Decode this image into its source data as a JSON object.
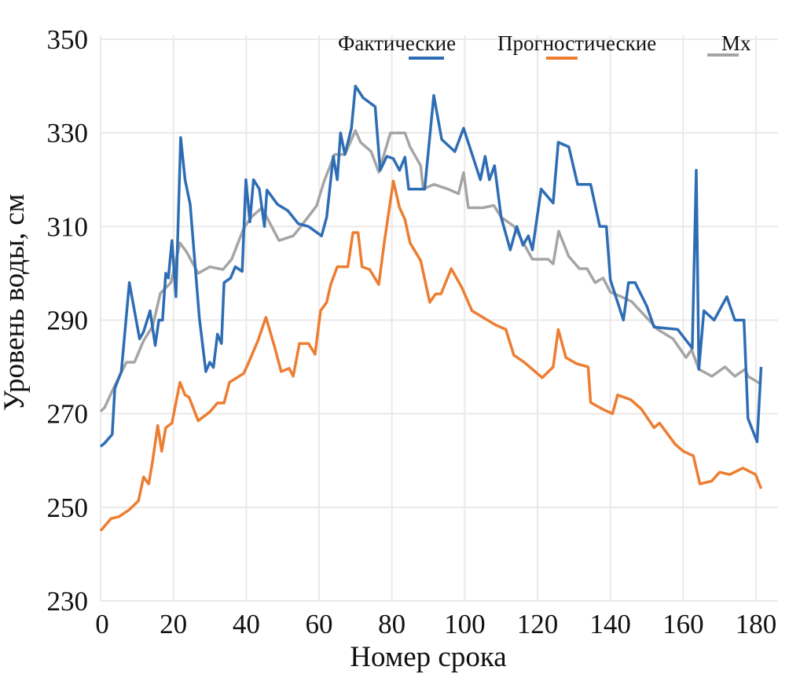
{
  "chart_data": {
    "type": "line",
    "title": "",
    "xlabel": "Номер срока",
    "ylabel": "Уровень воды, см",
    "xlim": [
      0,
      182
    ],
    "ylim": [
      230,
      350
    ],
    "xticks": [
      "0",
      "20",
      "40",
      "60",
      "80",
      "100",
      "120",
      "140",
      "160",
      "180"
    ],
    "yticks": [
      "230",
      "250",
      "270",
      "290",
      "310",
      "330",
      "350"
    ],
    "grid": true,
    "legend_position": "top-right",
    "series": [
      {
        "name": "Фактические",
        "color": "#2e6db4",
        "points": [
          [
            0,
            263
          ],
          [
            1.1,
            263.7
          ],
          [
            3.2,
            265.6
          ],
          [
            3.9,
            275.4
          ],
          [
            5.7,
            279
          ],
          [
            7.9,
            298
          ],
          [
            10.7,
            286
          ],
          [
            11.8,
            287.5
          ],
          [
            13.6,
            292
          ],
          [
            15,
            284.6
          ],
          [
            16,
            290
          ],
          [
            17,
            290
          ],
          [
            17.9,
            300
          ],
          [
            18.6,
            299
          ],
          [
            19.6,
            307
          ],
          [
            20.7,
            295
          ],
          [
            22,
            329
          ],
          [
            23.2,
            320
          ],
          [
            24.6,
            314.7
          ],
          [
            27.1,
            290.6
          ],
          [
            28.9,
            279
          ],
          [
            30,
            281
          ],
          [
            31,
            279.9
          ],
          [
            32.1,
            287
          ],
          [
            33.2,
            285
          ],
          [
            33.9,
            298
          ],
          [
            35.7,
            299
          ],
          [
            37,
            301.4
          ],
          [
            38.9,
            300.4
          ],
          [
            39.9,
            320
          ],
          [
            41,
            311
          ],
          [
            42,
            320
          ],
          [
            43.6,
            318
          ],
          [
            45,
            310
          ],
          [
            45.7,
            317.8
          ],
          [
            48.6,
            314.7
          ],
          [
            51.4,
            313.4
          ],
          [
            54.3,
            310.6
          ],
          [
            57.1,
            310
          ],
          [
            60.7,
            308
          ],
          [
            62.1,
            312
          ],
          [
            63.9,
            325
          ],
          [
            65,
            320
          ],
          [
            65.9,
            330
          ],
          [
            67.1,
            325.4
          ],
          [
            68.9,
            331
          ],
          [
            70,
            340
          ],
          [
            72.1,
            337.5
          ],
          [
            75.4,
            335.6
          ],
          [
            76.8,
            322
          ],
          [
            78.6,
            325
          ],
          [
            80.4,
            324.5
          ],
          [
            82.1,
            322
          ],
          [
            83.6,
            324.8
          ],
          [
            84.6,
            318
          ],
          [
            89,
            318
          ],
          [
            91.5,
            338
          ],
          [
            93.7,
            328.6
          ],
          [
            97.3,
            326
          ],
          [
            99.7,
            331
          ],
          [
            104.3,
            320
          ],
          [
            105.6,
            325
          ],
          [
            106.8,
            320
          ],
          [
            108.2,
            323
          ],
          [
            110,
            312
          ],
          [
            112.5,
            305
          ],
          [
            114.3,
            310
          ],
          [
            116,
            306
          ],
          [
            117.5,
            308
          ],
          [
            118.6,
            305
          ],
          [
            121,
            318
          ],
          [
            124.3,
            315
          ],
          [
            125.7,
            328
          ],
          [
            128.6,
            327
          ],
          [
            131,
            319
          ],
          [
            134.6,
            319
          ],
          [
            137.1,
            310
          ],
          [
            138.9,
            310
          ],
          [
            140,
            298.6
          ],
          [
            143.6,
            290
          ],
          [
            145,
            298
          ],
          [
            146.8,
            298
          ],
          [
            150,
            293
          ],
          [
            152,
            288.5
          ],
          [
            158.5,
            288
          ],
          [
            162.5,
            284
          ],
          [
            163.6,
            322
          ],
          [
            164.3,
            279.5
          ],
          [
            165.7,
            292
          ],
          [
            168.5,
            290
          ],
          [
            172,
            295
          ],
          [
            174.2,
            290
          ],
          [
            176.7,
            290
          ],
          [
            177.8,
            269
          ],
          [
            180.3,
            264
          ],
          [
            181.4,
            280
          ]
        ]
      },
      {
        "name": "Прогностические",
        "color": "#ed7d31",
        "points": [
          [
            0,
            245
          ],
          [
            1.1,
            246
          ],
          [
            2.9,
            247.6
          ],
          [
            5,
            248
          ],
          [
            7.9,
            249.5
          ],
          [
            10.4,
            251.4
          ],
          [
            11.8,
            256.5
          ],
          [
            13.2,
            255
          ],
          [
            14.3,
            260
          ],
          [
            15.7,
            267.5
          ],
          [
            16.8,
            262
          ],
          [
            17.9,
            267
          ],
          [
            19.6,
            268
          ],
          [
            21.8,
            276.7
          ],
          [
            23.2,
            274
          ],
          [
            24.3,
            273.5
          ],
          [
            26.8,
            268.5
          ],
          [
            30,
            270.4
          ],
          [
            32.1,
            272.3
          ],
          [
            33.9,
            272.3
          ],
          [
            35.4,
            276.7
          ],
          [
            39.3,
            278.6
          ],
          [
            40.7,
            281
          ],
          [
            43.2,
            285.6
          ],
          [
            45.4,
            290.6
          ],
          [
            47.9,
            284
          ],
          [
            49.6,
            279
          ],
          [
            51.8,
            279.7
          ],
          [
            52.9,
            278
          ],
          [
            54.6,
            285
          ],
          [
            57.1,
            285
          ],
          [
            58.9,
            282.7
          ],
          [
            60.4,
            292
          ],
          [
            62.1,
            293.8
          ],
          [
            63.2,
            297.6
          ],
          [
            65,
            301.4
          ],
          [
            67.9,
            301.4
          ],
          [
            69.3,
            308.7
          ],
          [
            70.7,
            308.7
          ],
          [
            71.8,
            301.4
          ],
          [
            73.9,
            300.8
          ],
          [
            76.4,
            297.6
          ],
          [
            77.9,
            306.5
          ],
          [
            80.4,
            319.7
          ],
          [
            82.1,
            314
          ],
          [
            83.6,
            311.5
          ],
          [
            85,
            306.5
          ],
          [
            87.9,
            302.7
          ],
          [
            90.4,
            293.8
          ],
          [
            92,
            295.6
          ],
          [
            93.5,
            295.6
          ],
          [
            96.3,
            301
          ],
          [
            99.2,
            297
          ],
          [
            102,
            292
          ],
          [
            108.4,
            289
          ],
          [
            111.3,
            288
          ],
          [
            113.5,
            282.5
          ],
          [
            116.3,
            281
          ],
          [
            121.3,
            277.7
          ],
          [
            124.3,
            280
          ],
          [
            125.7,
            288
          ],
          [
            127.8,
            282
          ],
          [
            130.7,
            280.7
          ],
          [
            133.9,
            280
          ],
          [
            134.6,
            272.4
          ],
          [
            137.8,
            271
          ],
          [
            140.6,
            270
          ],
          [
            142,
            274
          ],
          [
            145.6,
            273
          ],
          [
            148.5,
            271
          ],
          [
            152,
            267
          ],
          [
            153.5,
            268
          ],
          [
            157.8,
            263.5
          ],
          [
            160,
            262
          ],
          [
            162.8,
            261
          ],
          [
            164.6,
            255
          ],
          [
            167.8,
            255.6
          ],
          [
            170,
            257.5
          ],
          [
            172.8,
            257
          ],
          [
            176.4,
            258.4
          ],
          [
            179.9,
            257
          ],
          [
            181.4,
            254
          ]
        ]
      },
      {
        "name": "Mx",
        "color": "#a5a5a5",
        "points": [
          [
            0,
            270.5
          ],
          [
            1.1,
            271.3
          ],
          [
            2.1,
            273
          ],
          [
            3.9,
            276
          ],
          [
            7.1,
            281
          ],
          [
            9.3,
            281
          ],
          [
            11.8,
            285.6
          ],
          [
            14.3,
            288.7
          ],
          [
            16.4,
            295.7
          ],
          [
            19.3,
            298
          ],
          [
            21.8,
            306.5
          ],
          [
            23.6,
            304.6
          ],
          [
            26.8,
            300
          ],
          [
            30,
            301.4
          ],
          [
            33.6,
            300.8
          ],
          [
            36,
            303
          ],
          [
            39.3,
            309.6
          ],
          [
            41.4,
            312
          ],
          [
            44.3,
            314
          ],
          [
            49,
            307
          ],
          [
            52.9,
            308
          ],
          [
            55,
            310
          ],
          [
            59.3,
            314.4
          ],
          [
            61.4,
            319.7
          ],
          [
            64.3,
            325.4
          ],
          [
            67.1,
            325.4
          ],
          [
            70,
            330.5
          ],
          [
            71.4,
            328
          ],
          [
            74.3,
            326
          ],
          [
            76.4,
            321.6
          ],
          [
            79.6,
            330
          ],
          [
            81.4,
            330
          ],
          [
            83.6,
            330
          ],
          [
            85,
            327
          ],
          [
            87.9,
            323
          ],
          [
            88.6,
            318
          ],
          [
            91.5,
            319
          ],
          [
            95.4,
            318
          ],
          [
            98.3,
            317
          ],
          [
            99.7,
            321.5
          ],
          [
            101,
            314
          ],
          [
            105,
            314
          ],
          [
            108,
            314.5
          ],
          [
            110,
            312
          ],
          [
            113.6,
            310
          ],
          [
            118.6,
            303
          ],
          [
            122.9,
            303
          ],
          [
            124.3,
            302
          ],
          [
            125.8,
            309
          ],
          [
            128.6,
            303.6
          ],
          [
            131.5,
            301
          ],
          [
            133.6,
            301
          ],
          [
            135.8,
            298
          ],
          [
            138,
            299
          ],
          [
            140,
            296
          ],
          [
            143,
            295
          ],
          [
            145.8,
            294
          ],
          [
            149.4,
            291
          ],
          [
            153,
            288
          ],
          [
            157.2,
            286
          ],
          [
            160.8,
            282
          ],
          [
            162.3,
            283.7
          ],
          [
            164.3,
            279.5
          ],
          [
            167.9,
            278
          ],
          [
            171.5,
            280
          ],
          [
            174.2,
            278
          ],
          [
            177,
            279.5
          ],
          [
            177.8,
            278
          ],
          [
            181,
            276.5
          ]
        ]
      }
    ]
  }
}
